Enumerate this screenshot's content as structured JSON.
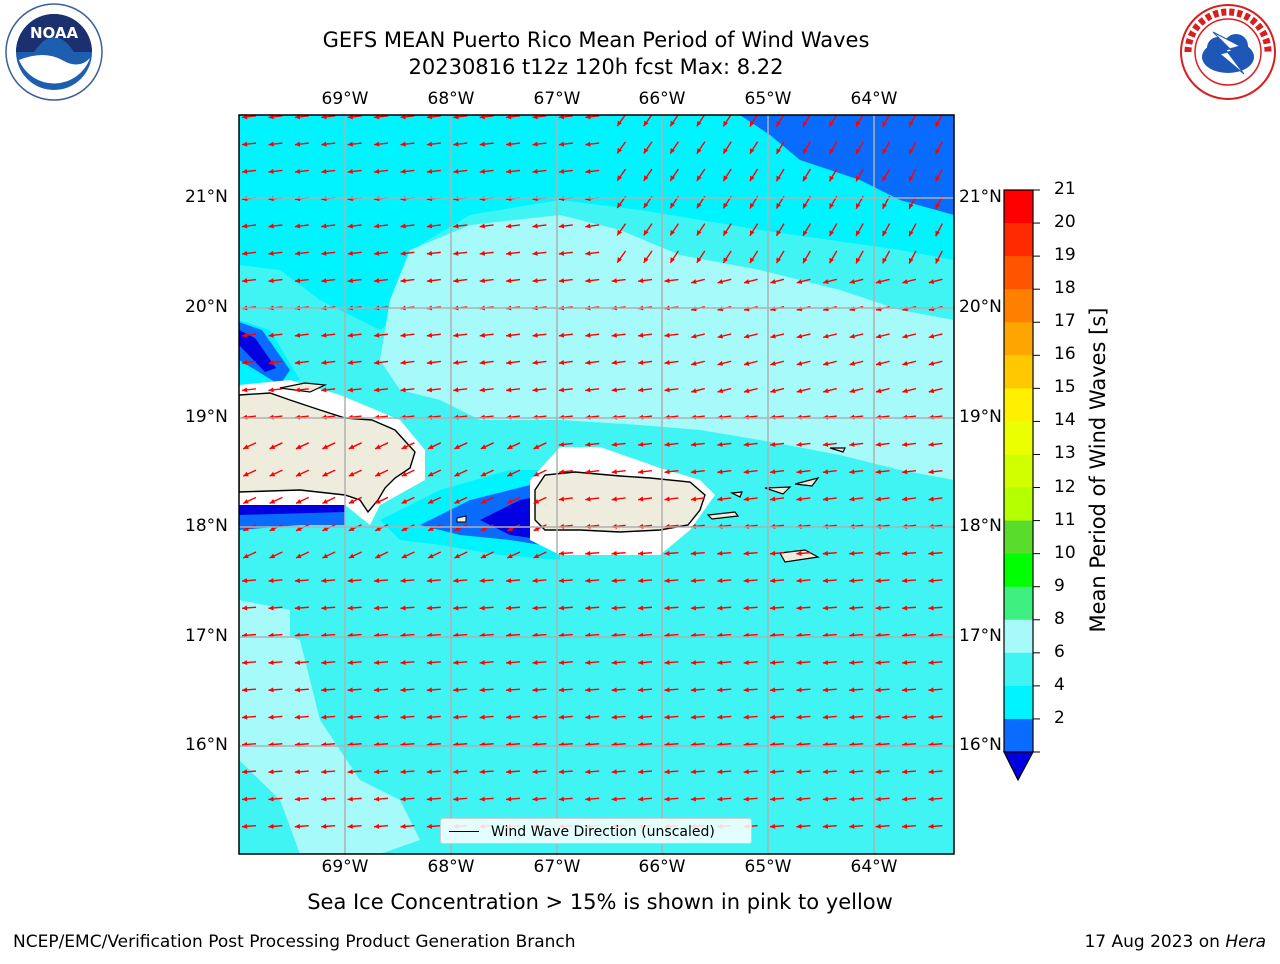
{
  "header": {
    "title_line1": "GEFS MEAN Puerto Rico Mean Period of Wind Waves",
    "title_line2": "20230816 t12z 120h fcst   Max: 8.22"
  },
  "map": {
    "lon_labels": [
      "69°W",
      "68°W",
      "67°W",
      "66°W",
      "65°W",
      "64°W"
    ],
    "lat_labels": [
      "21°N",
      "20°N",
      "19°N",
      "18°N",
      "17°N",
      "16°N"
    ],
    "land_color": "#eeecdc",
    "ocean_colors": {
      "period_2_4": "#0a6cff",
      "period_lt_2": "#0000e0",
      "period_4_6": "#00f4ff",
      "period_6_8": "#41f4f4",
      "period_8_9": "#a6fafa"
    },
    "arrow_color": "#ff0000"
  },
  "legend": {
    "label": "Wind Wave Direction (unscaled)"
  },
  "colorbar": {
    "title": "Mean Period of Wind Waves [s]",
    "ticks": [
      "21",
      "20",
      "19",
      "18",
      "17",
      "16",
      "15",
      "14",
      "13",
      "12",
      "11",
      "10",
      "9",
      "8",
      "6",
      "4",
      "2"
    ],
    "colors": [
      "#ff0000",
      "#ff2a00",
      "#ff5500",
      "#ff7f00",
      "#ffa500",
      "#ffc800",
      "#fff000",
      "#ebff00",
      "#d2ff00",
      "#b4ff00",
      "#5adc2d",
      "#00ff00",
      "#3ff080",
      "#a6fafa",
      "#41f4f4",
      "#00f4ff",
      "#0a6cff"
    ],
    "extend_color": "#0000e0"
  },
  "caption": "Sea Ice Concentration > 15% is shown in pink to yellow",
  "footer": {
    "credit": "NCEP/EMC/Verification Post Processing Product Generation Branch",
    "date": "17 Aug 2023 on ",
    "host": "Hera"
  },
  "logos": {
    "noaa_text": "NOAA",
    "nws_text": "NATIONAL WEATHER SERVICE"
  }
}
